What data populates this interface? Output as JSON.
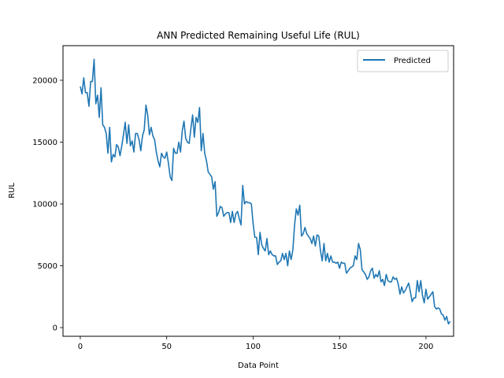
{
  "chart_data": {
    "type": "line",
    "title": "ANN Predicted Remaining Useful Life (RUL)",
    "xlabel": "Data Point",
    "ylabel": "RUL",
    "xlim": [
      -10,
      216
    ],
    "ylim": [
      -700,
      22800
    ],
    "xticks": [
      0,
      50,
      100,
      150,
      200
    ],
    "yticks": [
      0,
      5000,
      10000,
      15000,
      20000
    ],
    "grid": false,
    "legend": "top-right",
    "series": [
      {
        "name": "Predicted",
        "color": "#1f77b4",
        "values": [
          19500,
          18900,
          20200,
          19000,
          19000,
          17900,
          19900,
          19900,
          21700,
          18100,
          18800,
          17000,
          19400,
          16400,
          16200,
          15700,
          14100,
          16200,
          13400,
          14000,
          13800,
          14800,
          14600,
          13900,
          14700,
          15600,
          16600,
          14900,
          16400,
          14700,
          15100,
          14200,
          15700,
          15700,
          15200,
          14300,
          15500,
          16000,
          18000,
          17200,
          15600,
          16200,
          15500,
          15200,
          14200,
          13500,
          13000,
          14100,
          13800,
          13700,
          14200,
          13300,
          12200,
          11900,
          14500,
          14100,
          14100,
          15000,
          14200,
          15900,
          16700,
          15300,
          15000,
          14900,
          16100,
          17200,
          15400,
          17000,
          16600,
          17800,
          14300,
          15700,
          14100,
          13500,
          12600,
          12400,
          12200,
          11200,
          11800,
          9000,
          9300,
          9800,
          9700,
          9000,
          9200,
          9300,
          9300,
          8500,
          9400,
          8500,
          9200,
          9400,
          8800,
          8300,
          11500,
          10000,
          10200,
          10100,
          10100,
          10000,
          8400,
          7300,
          7300,
          5900,
          7700,
          6700,
          6400,
          6200,
          7200,
          5900,
          6200,
          5900,
          5800,
          5800,
          5100,
          5300,
          5400,
          6000,
          5500,
          6000,
          5000,
          6200,
          5500,
          6300,
          8300,
          9600,
          9100,
          9900,
          7400,
          7600,
          8100,
          7600,
          7400,
          7200,
          6800,
          7400,
          6600,
          7500,
          7400,
          6200,
          5400,
          6800,
          5400,
          6000,
          5300,
          5800,
          5300,
          5300,
          5200,
          5300,
          4800,
          5300,
          5200,
          5200,
          4400,
          4600,
          4800,
          4900,
          5000,
          5800,
          5500,
          6800,
          6300,
          4700,
          4500,
          4300,
          3900,
          4100,
          4600,
          4800,
          4000,
          4300,
          4100,
          4600,
          3700,
          3900,
          3400,
          4300,
          3800,
          3700,
          3700,
          4100,
          3900,
          4000,
          3500,
          2700,
          3300,
          2800,
          3000,
          3300,
          3600,
          2900,
          2100,
          2400,
          2400,
          3800,
          2900,
          3800,
          2600,
          2000,
          3100,
          2300,
          2500,
          2700,
          2900,
          1700,
          1500,
          1600,
          1500,
          1100,
          1000,
          600,
          900,
          300,
          500
        ]
      }
    ]
  }
}
